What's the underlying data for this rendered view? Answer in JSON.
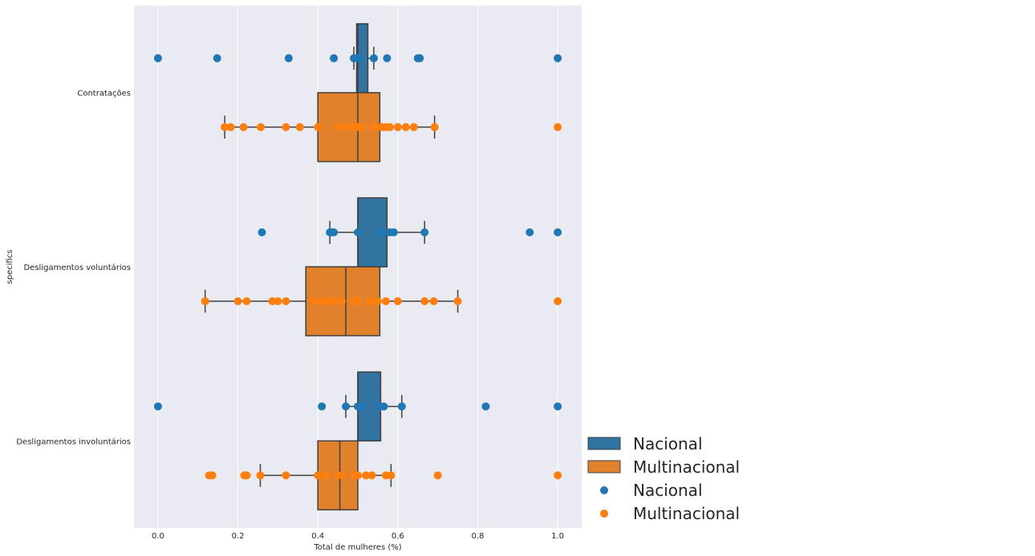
{
  "chart_data": {
    "type": "box",
    "orientation": "horizontal",
    "xlabel": "Total de mulheres (%)",
    "ylabel": "specifics",
    "xlim": [
      -0.06,
      1.06
    ],
    "xticks": [
      0.0,
      0.2,
      0.4,
      0.6,
      0.8,
      1.0
    ],
    "xtick_labels": [
      "0.0",
      "0.2",
      "0.4",
      "0.6",
      "0.8",
      "1.0"
    ],
    "categories": [
      "Contratações",
      "Desligamentos voluntários",
      "Desligamentos involuntários"
    ],
    "grid": true,
    "legend_position": "bottom-right-outside",
    "series": [
      {
        "name": "Nacional",
        "color": "#1f77b4",
        "box_color": "#3274a1",
        "boxes": [
          {
            "whisker_low": 0.49,
            "q1": 0.497,
            "median": 0.5,
            "q3": 0.525,
            "whisker_high": 0.54
          },
          {
            "whisker_low": 0.43,
            "q1": 0.5,
            "median": 0.5,
            "q3": 0.573,
            "whisker_high": 0.667
          },
          {
            "whisker_low": 0.47,
            "q1": 0.5,
            "median": 0.5,
            "q3": 0.557,
            "whisker_high": 0.61
          }
        ],
        "points": [
          [
            0.0,
            0.148,
            0.327,
            0.44,
            0.49,
            0.5,
            0.505,
            0.54,
            0.573,
            0.65,
            0.655,
            1.0
          ],
          [
            0.26,
            0.43,
            0.435,
            0.44,
            0.5,
            0.555,
            0.58,
            0.59,
            0.667,
            0.93,
            1.0
          ],
          [
            0.0,
            0.41,
            0.47,
            0.5,
            0.51,
            0.555,
            0.565,
            0.61,
            0.82,
            1.0
          ]
        ]
      },
      {
        "name": "Multinacional",
        "color": "#ff7f0e",
        "box_color": "#e1812c",
        "boxes": [
          {
            "whisker_low": 0.167,
            "q1": 0.4,
            "median": 0.5,
            "q3": 0.555,
            "whisker_high": 0.692
          },
          {
            "whisker_low": 0.118,
            "q1": 0.37,
            "median": 0.47,
            "q3": 0.555,
            "whisker_high": 0.75
          },
          {
            "whisker_low": 0.256,
            "q1": 0.4,
            "median": 0.455,
            "q3": 0.5,
            "whisker_high": 0.583
          }
        ],
        "points": [
          [
            0.167,
            0.182,
            0.214,
            0.257,
            0.32,
            0.355,
            0.4,
            0.45,
            0.47,
            0.49,
            0.5,
            0.51,
            0.54,
            0.56,
            0.57,
            0.58,
            0.6,
            0.62,
            0.64,
            0.692,
            1.0
          ],
          [
            0.118,
            0.2,
            0.222,
            0.286,
            0.3,
            0.32,
            0.39,
            0.41,
            0.43,
            0.44,
            0.46,
            0.49,
            0.5,
            0.53,
            0.55,
            0.57,
            0.6,
            0.667,
            0.69,
            0.75,
            1.0
          ],
          [
            0.128,
            0.136,
            0.216,
            0.222,
            0.256,
            0.32,
            0.4,
            0.42,
            0.45,
            0.46,
            0.49,
            0.5,
            0.52,
            0.535,
            0.57,
            0.583,
            0.7,
            1.0
          ]
        ]
      }
    ],
    "legend_entries": [
      {
        "label": "Nacional",
        "kind": "box",
        "color": "#3274a1"
      },
      {
        "label": "Multinacional",
        "kind": "box",
        "color": "#e1812c"
      },
      {
        "label": "Nacional",
        "kind": "point",
        "color": "#1f77b4"
      },
      {
        "label": "Multinacional",
        "kind": "point",
        "color": "#ff7f0e"
      }
    ]
  }
}
